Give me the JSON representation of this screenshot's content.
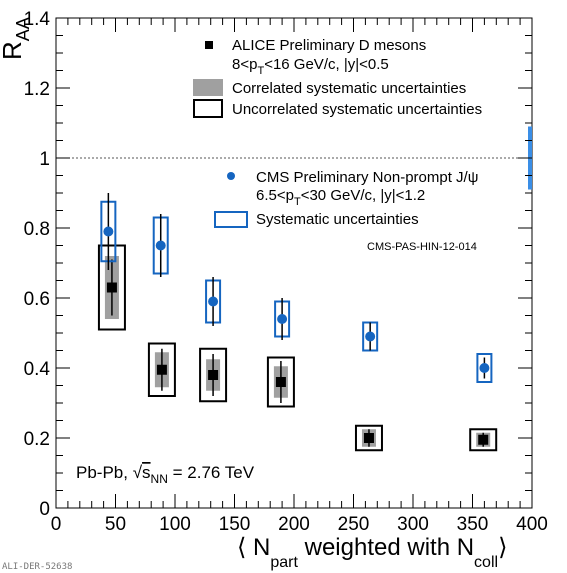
{
  "chart_data": {
    "type": "scatter",
    "xlim": [
      0,
      400
    ],
    "ylim": [
      0,
      1.4
    ],
    "x_ticks": [
      "0",
      "50",
      "100",
      "150",
      "200",
      "250",
      "300",
      "350",
      "400"
    ],
    "y_ticks": [
      "0",
      "0.2",
      "0.4",
      "0.6",
      "0.8",
      "1",
      "1.2",
      "1.4"
    ],
    "y_tick_values": [
      0,
      0.2,
      0.4,
      0.6,
      0.8,
      1.0,
      1.2,
      1.4
    ],
    "ylabel": "R",
    "ylabel_sub": "AA",
    "xlabel_parts": [
      "⟨ N",
      "part",
      " weighted with N",
      "coll",
      "⟩"
    ],
    "reference_line": 1.0,
    "global_uncertainty": {
      "center": 1.0,
      "half_width": 0.09,
      "color": "#3a8ee6"
    },
    "series": [
      {
        "name": "ALICE Preliminary D mesons",
        "marker": "square",
        "color": "#000000",
        "points": [
          {
            "x": 47,
            "y": 0.63,
            "stat": 0.08,
            "corr": 0.09,
            "uncorr": 0.12
          },
          {
            "x": 89,
            "y": 0.395,
            "stat": 0.06,
            "corr": 0.05,
            "uncorr": 0.075
          },
          {
            "x": 132,
            "y": 0.38,
            "stat": 0.06,
            "corr": 0.045,
            "uncorr": 0.075
          },
          {
            "x": 189,
            "y": 0.36,
            "stat": 0.06,
            "corr": 0.045,
            "uncorr": 0.07
          },
          {
            "x": 263,
            "y": 0.2,
            "stat": 0.025,
            "corr": 0.025,
            "uncorr": 0.035
          },
          {
            "x": 359,
            "y": 0.195,
            "stat": 0.02,
            "corr": 0.02,
            "uncorr": 0.03
          }
        ]
      },
      {
        "name": "CMS Preliminary Non-prompt J/ψ",
        "marker": "circle",
        "color": "#1565c0",
        "points": [
          {
            "x": 44,
            "y": 0.79,
            "stat": 0.11,
            "syst": 0.085
          },
          {
            "x": 88,
            "y": 0.75,
            "stat": 0.09,
            "syst": 0.08
          },
          {
            "x": 132,
            "y": 0.59,
            "stat": 0.07,
            "syst": 0.06
          },
          {
            "x": 190,
            "y": 0.54,
            "stat": 0.06,
            "syst": 0.05
          },
          {
            "x": 264,
            "y": 0.49,
            "stat": 0.04,
            "syst": 0.04
          },
          {
            "x": 360,
            "y": 0.4,
            "stat": 0.03,
            "syst": 0.04
          }
        ]
      }
    ],
    "legend_alice": {
      "title": "ALICE Preliminary D mesons",
      "kin_a": "8<p",
      "kin_sub": "T",
      "kin_b": "<16 GeV/c, |y|<0.5",
      "corr": "Correlated systematic uncertainties",
      "uncorr": "Uncorrelated systematic uncertainties"
    },
    "legend_cms": {
      "title": "CMS Preliminary Non-prompt J/ψ",
      "kin_a": "6.5<p",
      "kin_sub": "T",
      "kin_b": "<30 GeV/c, |y|<1.2",
      "syst": "Systematic uncertainties"
    },
    "annotations": {
      "cms_ref": "CMS-PAS-HIN-12-014",
      "system_a": "Pb-Pb, ",
      "system_sqrt": "√",
      "system_s": "s",
      "system_sub": "NN",
      "system_b": " = 2.76 TeV",
      "figure_id": "ALI-DER-52638"
    }
  }
}
